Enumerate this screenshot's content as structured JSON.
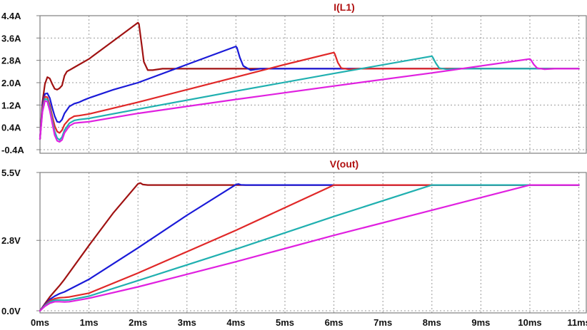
{
  "chart_data": [
    {
      "type": "line",
      "title": "I(L1)",
      "title_color": "#b01010",
      "xlabel": "",
      "ylabel": "",
      "xlim": [
        0,
        11
      ],
      "ylim": [
        -0.4,
        4.4
      ],
      "x_ticks": [
        0,
        1,
        2,
        3,
        4,
        5,
        6,
        7,
        8,
        9,
        10,
        11
      ],
      "x_tick_labels": [
        "0ms",
        "1ms",
        "2ms",
        "3ms",
        "4ms",
        "5ms",
        "6ms",
        "7ms",
        "8ms",
        "9ms",
        "10ms",
        "11ms"
      ],
      "y_ticks": [
        -0.4,
        0.4,
        1.2,
        2.0,
        2.8,
        3.6,
        4.4
      ],
      "y_tick_labels": [
        "-0.4A",
        "0.4A",
        "1.2A",
        "2.0A",
        "2.8A",
        "3.6A",
        "4.4A"
      ],
      "grid": true,
      "series": [
        {
          "color": "#a01212",
          "x": [
            0,
            0.05,
            0.1,
            0.15,
            0.2,
            0.25,
            0.3,
            0.35,
            0.4,
            0.45,
            0.5,
            0.55,
            0.6,
            0.7,
            1.0,
            1.5,
            2.0,
            2.02,
            2.08,
            2.12,
            2.2,
            2.3,
            2.5,
            11
          ],
          "y": [
            -0.02,
            1.3,
            1.95,
            2.2,
            2.15,
            1.95,
            1.78,
            1.75,
            1.8,
            1.9,
            2.25,
            2.4,
            2.45,
            2.55,
            2.85,
            3.5,
            4.15,
            4.1,
            3.3,
            2.75,
            2.45,
            2.45,
            2.5,
            2.5
          ]
        },
        {
          "color": "#1a1ad8",
          "x": [
            0,
            0.05,
            0.1,
            0.15,
            0.2,
            0.25,
            0.3,
            0.35,
            0.4,
            0.45,
            0.5,
            0.6,
            0.7,
            0.8,
            0.9,
            1.0,
            1.5,
            2.0,
            3.0,
            4.0,
            4.02,
            4.08,
            4.15,
            4.3,
            4.5,
            11
          ],
          "y": [
            -0.02,
            1.2,
            1.6,
            1.62,
            1.45,
            1.1,
            0.8,
            0.6,
            0.58,
            0.68,
            0.9,
            1.15,
            1.25,
            1.3,
            1.38,
            1.45,
            1.75,
            2.0,
            2.65,
            3.3,
            3.25,
            2.9,
            2.6,
            2.45,
            2.5,
            2.5
          ]
        },
        {
          "color": "#e02828",
          "x": [
            0,
            0.05,
            0.1,
            0.15,
            0.2,
            0.25,
            0.3,
            0.35,
            0.4,
            0.45,
            0.5,
            0.6,
            0.7,
            0.8,
            1.0,
            2.0,
            3.0,
            4.0,
            5.0,
            6.0,
            6.02,
            6.08,
            6.15,
            6.3,
            6.5,
            11
          ],
          "y": [
            -0.02,
            1.1,
            1.5,
            1.48,
            1.2,
            0.8,
            0.45,
            0.25,
            0.2,
            0.3,
            0.5,
            0.7,
            0.8,
            0.82,
            0.88,
            1.3,
            1.75,
            2.2,
            2.65,
            3.08,
            3.02,
            2.72,
            2.52,
            2.48,
            2.5,
            2.5
          ]
        },
        {
          "color": "#20b0b0",
          "x": [
            0,
            0.05,
            0.1,
            0.15,
            0.2,
            0.25,
            0.3,
            0.35,
            0.4,
            0.45,
            0.5,
            0.6,
            0.7,
            0.8,
            1.0,
            2.0,
            4.0,
            6.0,
            8.0,
            8.02,
            8.08,
            8.15,
            8.3,
            8.5,
            11
          ],
          "y": [
            -0.02,
            1.0,
            1.42,
            1.4,
            1.1,
            0.65,
            0.25,
            0.02,
            -0.05,
            0.05,
            0.3,
            0.55,
            0.65,
            0.68,
            0.72,
            1.05,
            1.7,
            2.33,
            2.95,
            2.9,
            2.7,
            2.52,
            2.48,
            2.5,
            2.5
          ]
        },
        {
          "color": "#e020e0",
          "x": [
            0,
            0.05,
            0.1,
            0.15,
            0.2,
            0.25,
            0.3,
            0.35,
            0.4,
            0.45,
            0.5,
            0.6,
            0.7,
            0.8,
            1.0,
            2.0,
            4.0,
            6.0,
            8.0,
            10.0,
            10.02,
            10.08,
            10.15,
            10.3,
            10.5,
            11
          ],
          "y": [
            -0.02,
            0.95,
            1.35,
            1.32,
            1.0,
            0.55,
            0.12,
            -0.08,
            -0.12,
            -0.05,
            0.2,
            0.45,
            0.55,
            0.57,
            0.6,
            0.9,
            1.4,
            1.88,
            2.35,
            2.85,
            2.82,
            2.65,
            2.52,
            2.48,
            2.5,
            2.5
          ]
        }
      ]
    },
    {
      "type": "line",
      "title": "V(out)",
      "title_color": "#b01010",
      "xlabel": "",
      "ylabel": "",
      "xlim": [
        0,
        11
      ],
      "ylim": [
        0,
        5.5
      ],
      "x_ticks": [
        0,
        1,
        2,
        3,
        4,
        5,
        6,
        7,
        8,
        9,
        10,
        11
      ],
      "x_tick_labels": [
        "0ms",
        "1ms",
        "2ms",
        "3ms",
        "4ms",
        "5ms",
        "6ms",
        "7ms",
        "8ms",
        "9ms",
        "10ms",
        "11ms"
      ],
      "y_ticks": [
        0.0,
        2.8,
        5.5
      ],
      "y_tick_labels": [
        "0.0V",
        "2.8V",
        "5.5V"
      ],
      "grid": true,
      "series": [
        {
          "color": "#a01212",
          "x": [
            0,
            0.1,
            0.2,
            0.3,
            0.4,
            0.5,
            1.0,
            1.5,
            2.0,
            2.05,
            2.1,
            2.2,
            2.5,
            11
          ],
          "y": [
            0,
            0.28,
            0.55,
            0.78,
            1.0,
            1.25,
            2.6,
            3.9,
            5.05,
            5.08,
            5.02,
            5.0,
            5.0,
            5.0
          ]
        },
        {
          "color": "#1a1ad8",
          "x": [
            0,
            0.1,
            0.2,
            0.3,
            0.4,
            0.5,
            1.0,
            2.0,
            3.0,
            4.0,
            4.05,
            4.1,
            4.2,
            4.5,
            11
          ],
          "y": [
            0,
            0.25,
            0.45,
            0.58,
            0.68,
            0.75,
            1.25,
            2.5,
            3.8,
            5.02,
            5.04,
            5.01,
            5.0,
            5.0,
            5.0
          ]
        },
        {
          "color": "#e02828",
          "x": [
            0,
            0.1,
            0.2,
            0.3,
            0.4,
            0.5,
            0.6,
            1.0,
            2.0,
            3.0,
            4.0,
            5.0,
            6.0,
            11
          ],
          "y": [
            0,
            0.22,
            0.4,
            0.48,
            0.52,
            0.53,
            0.55,
            0.7,
            1.5,
            2.35,
            3.2,
            4.1,
            5.0,
            5.0
          ]
        },
        {
          "color": "#20b0b0",
          "x": [
            0,
            0.1,
            0.2,
            0.3,
            0.4,
            0.5,
            0.6,
            1.0,
            2.0,
            4.0,
            6.0,
            8.0,
            11
          ],
          "y": [
            0,
            0.2,
            0.35,
            0.42,
            0.43,
            0.42,
            0.43,
            0.58,
            1.2,
            2.45,
            3.75,
            5.0,
            5.0
          ]
        },
        {
          "color": "#e020e0",
          "x": [
            0,
            0.1,
            0.2,
            0.3,
            0.4,
            0.5,
            0.6,
            1.0,
            2.0,
            4.0,
            6.0,
            8.0,
            10.0,
            11
          ],
          "y": [
            0,
            0.18,
            0.3,
            0.36,
            0.36,
            0.35,
            0.36,
            0.5,
            0.95,
            1.95,
            3.0,
            4.0,
            5.0,
            5.0
          ]
        }
      ]
    }
  ]
}
